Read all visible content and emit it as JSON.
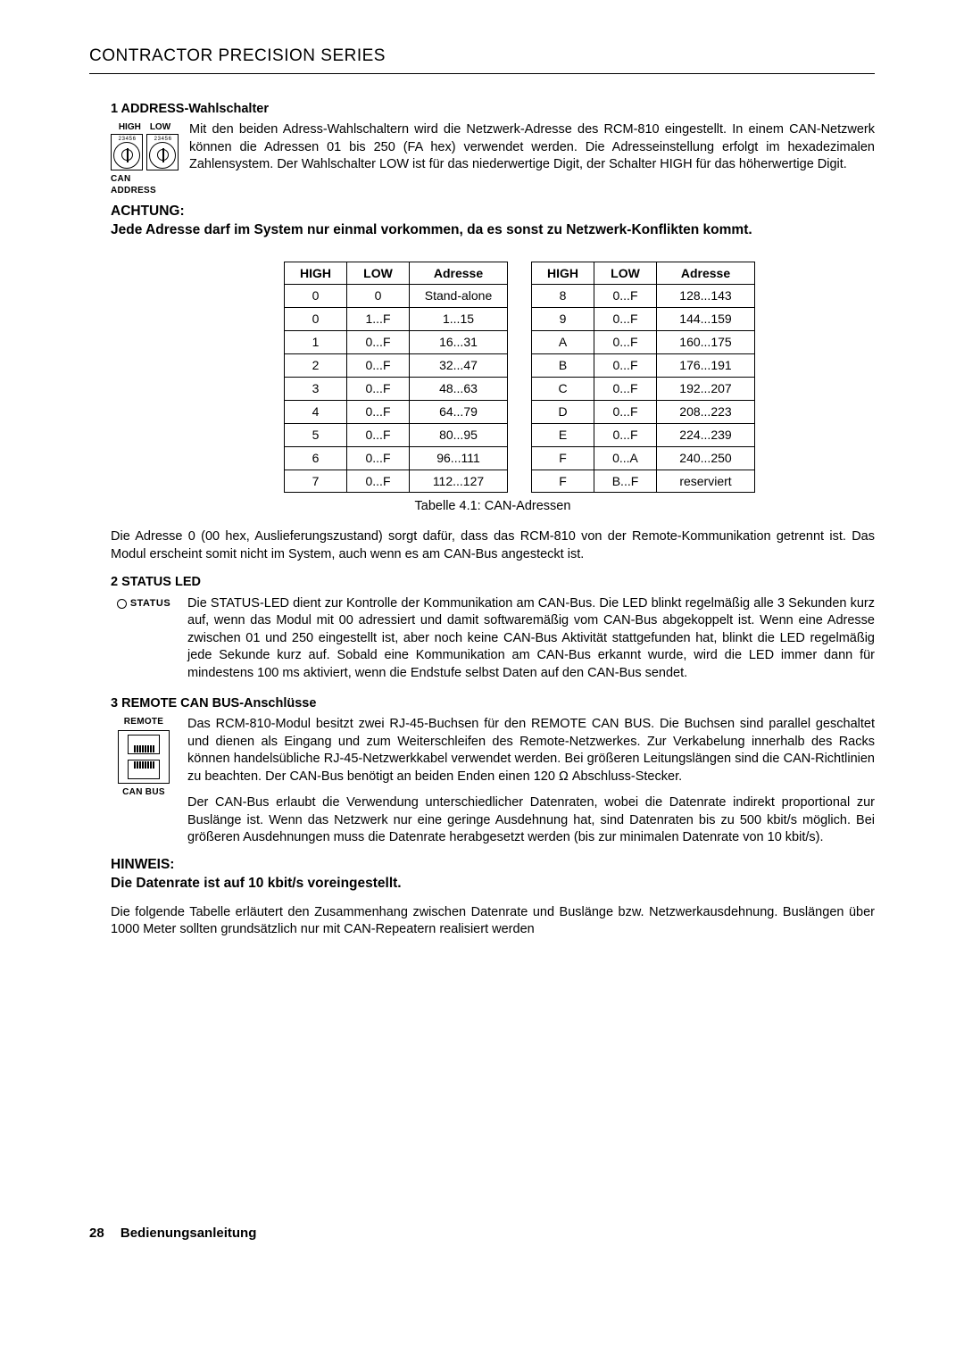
{
  "header": "CONTRACTOR PRECISION SERIES",
  "s1": {
    "title": "1   ADDRESS-Wahlschalter",
    "high": "HIGH",
    "low": "LOW",
    "canAddress": "CAN ADDRESS",
    "body": "Mit den beiden Adress-Wahlschaltern wird die Netzwerk-Adresse des RCM-810 eingestellt. In einem CAN-Netzwerk können die Adressen 01 bis 250 (FA hex) verwendet werden. Die Adresseinstellung erfolgt im hexadezimalen Zahlensystem. Der Wahlschalter LOW ist für das niederwertige Digit, der Schalter HIGH für das höherwertige Digit."
  },
  "achtung": {
    "title": "ACHTUNG:",
    "body": "Jede Adresse darf im System nur einmal vorkommen, da es sonst zu Netzwerk-Konflikten kommt."
  },
  "tableHeaders": {
    "high": "HIGH",
    "low": "LOW",
    "adresse": "Adresse"
  },
  "tableLeft": [
    [
      "0",
      "0",
      "Stand-alone"
    ],
    [
      "0",
      "1...F",
      "1...15"
    ],
    [
      "1",
      "0...F",
      "16...31"
    ],
    [
      "2",
      "0...F",
      "32...47"
    ],
    [
      "3",
      "0...F",
      "48...63"
    ],
    [
      "4",
      "0...F",
      "64...79"
    ],
    [
      "5",
      "0...F",
      "80...95"
    ],
    [
      "6",
      "0...F",
      "96...111"
    ],
    [
      "7",
      "0...F",
      "112...127"
    ]
  ],
  "tableRight": [
    [
      "8",
      "0...F",
      "128...143"
    ],
    [
      "9",
      "0...F",
      "144...159"
    ],
    [
      "A",
      "0...F",
      "160...175"
    ],
    [
      "B",
      "0...F",
      "176...191"
    ],
    [
      "C",
      "0...F",
      "192...207"
    ],
    [
      "D",
      "0...F",
      "208...223"
    ],
    [
      "E",
      "0...F",
      "224...239"
    ],
    [
      "F",
      "0...A",
      "240...250"
    ],
    [
      "F",
      "B...F",
      "reserviert"
    ]
  ],
  "tableCaption": "Tabelle 4.1: CAN-Adressen",
  "afterTable": "Die Adresse 0 (00 hex, Auslieferungszustand) sorgt dafür, dass das RCM-810 von der Remote-Kommunikation getrennt ist. Das Modul erscheint somit nicht im System, auch wenn es am CAN-Bus angesteckt ist.",
  "s2": {
    "title": "2   STATUS LED",
    "iconLabel": "STATUS",
    "body": "Die STATUS-LED dient zur Kontrolle der Kommunikation am CAN-Bus. Die LED blinkt regelmäßig alle 3 Sekunden kurz auf, wenn das Modul mit 00 adressiert und damit softwaremäßig vom CAN-Bus abgekoppelt ist. Wenn eine Adresse zwischen 01 und 250 eingestellt ist, aber noch keine CAN-Bus Aktivität stattgefunden hat, blinkt die LED regelmäßig jede Sekunde kurz auf. Sobald eine Kommunikation am CAN-Bus erkannt wurde, wird die LED immer dann für mindestens 100 ms aktiviert, wenn die Endstufe selbst Daten auf den CAN-Bus sendet."
  },
  "s3": {
    "title": "3   REMOTE CAN BUS-Anschlüsse",
    "remote": "REMOTE",
    "canbus": "CAN BUS",
    "p1": "Das RCM-810-Modul besitzt zwei RJ-45-Buchsen für den REMOTE CAN BUS. Die Buchsen sind parallel geschaltet und dienen als Eingang und zum Weiterschleifen des Remote-Netzwerkes. Zur Verkabelung innerhalb des Racks können handelsübliche RJ-45-Netzwerkkabel verwendet werden. Bei größeren Leitungslängen sind die CAN-Richtlinien zu beachten. Der CAN-Bus benötigt an beiden Enden einen 120 Ω Abschluss-Stecker.",
    "p2": "Der CAN-Bus erlaubt die Verwendung unterschiedlicher Datenraten, wobei die Datenrate indirekt proportional zur Buslänge ist. Wenn das Netzwerk nur eine geringe Ausdehnung hat, sind Datenraten bis zu 500 kbit/s möglich. Bei größeren Ausdehnungen muss die Datenrate herabgesetzt werden (bis zur minimalen Datenrate von 10 kbit/s)."
  },
  "hinweis": {
    "title": "HINWEIS:",
    "body": "Die Datenrate ist auf 10 kbit/s voreingestellt."
  },
  "closing": "Die folgende Tabelle erläutert den Zusammenhang zwischen Datenrate und Buslänge bzw. Netzwerkausdehnung. Buslängen über 1000 Meter sollten grundsätzlich nur mit CAN-Repeatern realisiert werden",
  "footer": {
    "page": "28",
    "label": "Bedienungsanleitung"
  }
}
